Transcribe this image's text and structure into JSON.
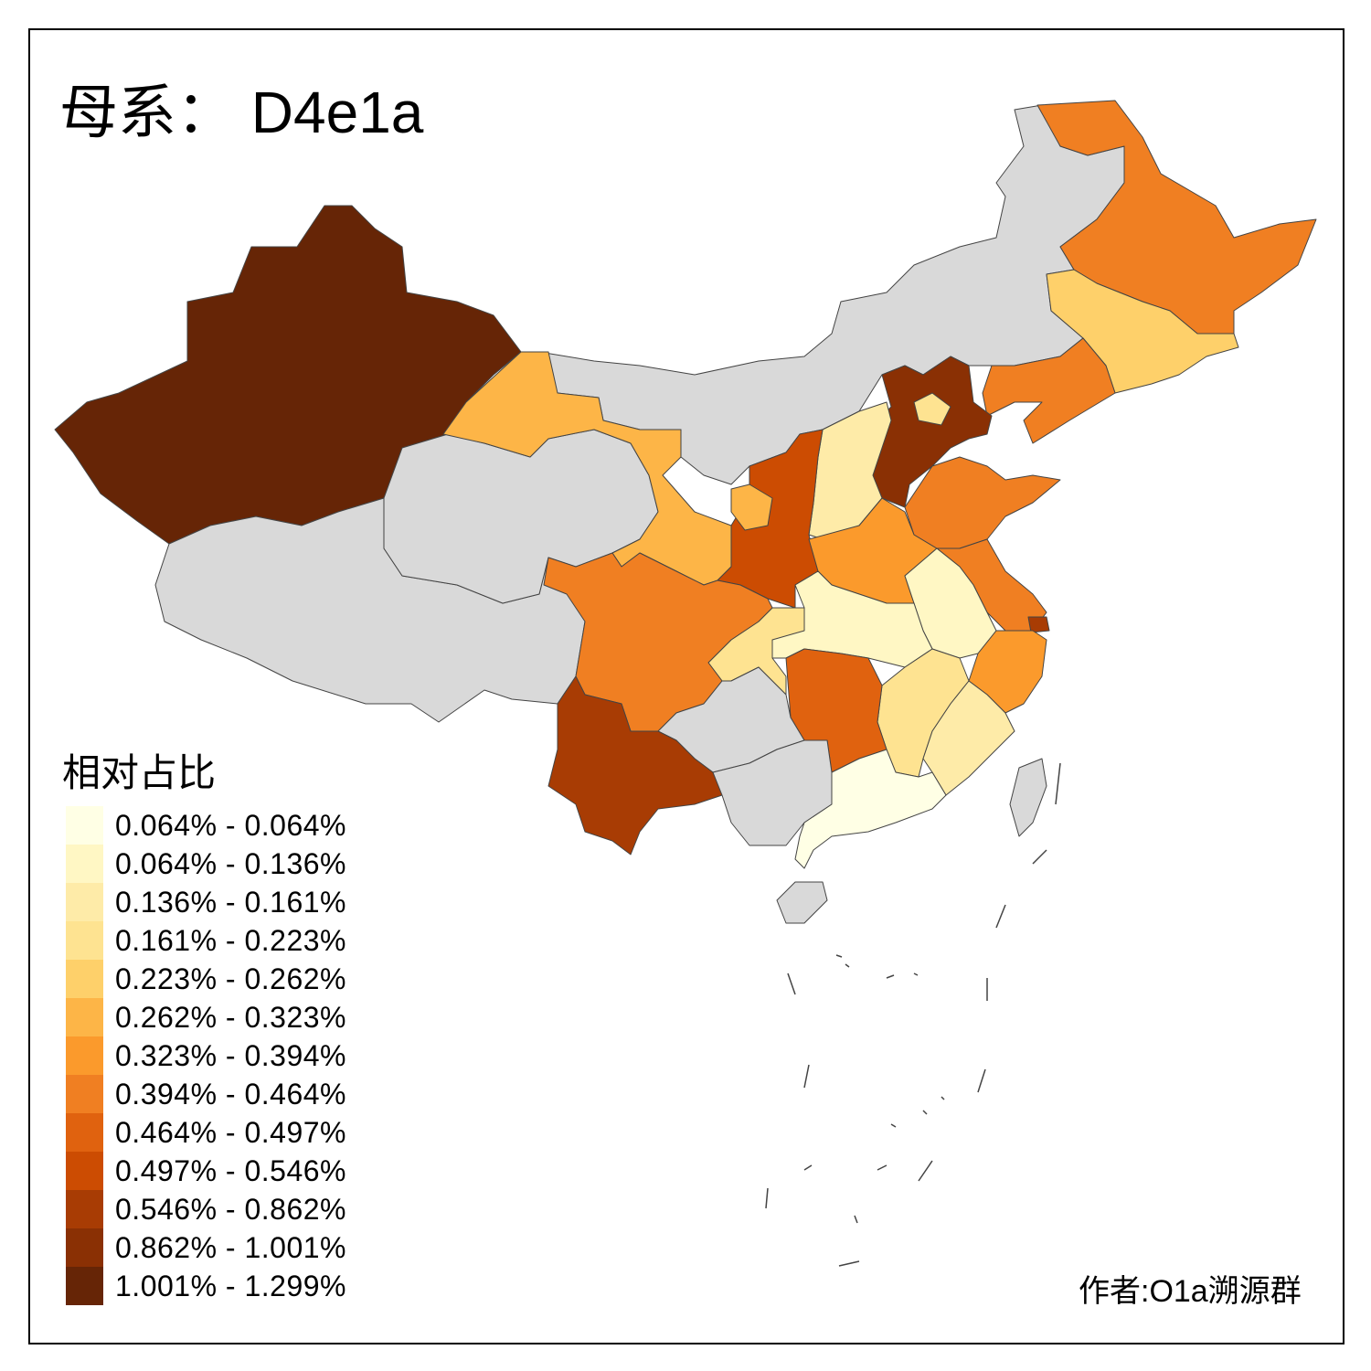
{
  "title": {
    "prefix": "母系：",
    "haplogroup": "D4e1a"
  },
  "legend": {
    "title": "相对占比",
    "items": [
      {
        "label": "0.064% - 0.064%",
        "color": "#FFFFE5"
      },
      {
        "label": "0.064% - 0.136%",
        "color": "#FFF7C4"
      },
      {
        "label": "0.136% - 0.161%",
        "color": "#FEEBA8"
      },
      {
        "label": "0.161% - 0.223%",
        "color": "#FEE391"
      },
      {
        "label": "0.223% - 0.262%",
        "color": "#FED06A"
      },
      {
        "label": "0.262% - 0.323%",
        "color": "#FDB547"
      },
      {
        "label": "0.323% - 0.394%",
        "color": "#FB9A2C"
      },
      {
        "label": "0.394% - 0.464%",
        "color": "#F07F22"
      },
      {
        "label": "0.464% - 0.497%",
        "color": "#E0620F"
      },
      {
        "label": "0.497% - 0.546%",
        "color": "#CC4C02"
      },
      {
        "label": "0.546% - 0.862%",
        "color": "#A83C04"
      },
      {
        "label": "0.862% - 1.001%",
        "color": "#8A3004"
      },
      {
        "label": "1.001% - 1.299%",
        "color": "#662506"
      }
    ]
  },
  "no_data_color": "#D9D9D9",
  "region_classes": {
    "xinjiang": 12,
    "tibet": -1,
    "qinghai": -1,
    "gansu": 5,
    "inner-mongolia": -1,
    "heilongjiang": 7,
    "jilin": 4,
    "liaoning": 7,
    "hebei": 11,
    "beijing": 3,
    "shanxi": 2,
    "shaanxi": 9,
    "ningxia": 5,
    "henan": 6,
    "shandong": 7,
    "jiangsu": 7,
    "shanghai": 10,
    "anhui": 1,
    "hubei": 1,
    "zhejiang": 6,
    "jiangxi": 3,
    "fujian": 2,
    "hunan": 8,
    "chongqing": 3,
    "sichuan": 7,
    "guizhou": -1,
    "yunnan": 10,
    "guangxi": -1,
    "guangdong": 0,
    "hainan": -1,
    "taiwan": -1
  },
  "author": "作者:O1a溯源群"
}
